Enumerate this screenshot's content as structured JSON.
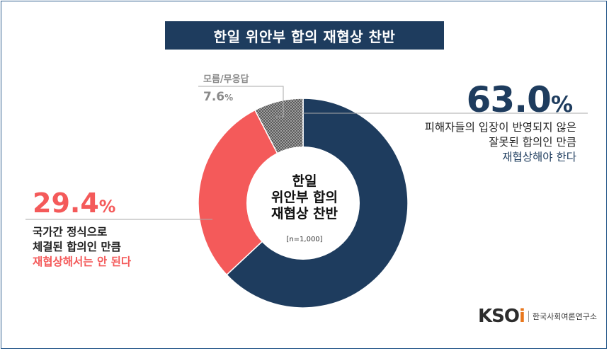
{
  "title": "한일 위안부 합의 재협상 찬반",
  "center": {
    "line1": "한일",
    "line2": "위안부 합의",
    "line3": "재협상 찬반",
    "n": "[n=1,000]"
  },
  "labels": {
    "right_pct": "63.0",
    "right_line1": "피해자들의 입장이 반영되지 않은",
    "right_line2": "잘못된 합의인 만큼",
    "right_line3": "재협상해야 한다",
    "left_pct": "29.4",
    "left_line1": "국가간 정식으로",
    "left_line2": "체결된 합의인 만큼",
    "left_line3": "재협상해서는 안 된다",
    "dk_label": "모름/무응답",
    "dk_pct": "7.6",
    "unit": "%"
  },
  "logo": {
    "mark_pre": "KSO",
    "mark_i": "i",
    "text": "한국사회여론연구소"
  },
  "colors": {
    "yes": "#1e3c5e",
    "no": "#f45a5a",
    "dk": "#9a9a9a"
  },
  "chart_data": {
    "type": "pie",
    "title": "한일 위안부 합의 재협상 찬반",
    "categories": [
      "피해자들의 입장이 반영되지 않은 잘못된 합의인 만큼 재협상해야 한다",
      "국가간 정식으로 체결된 합의인 만큼 재협상해서는 안 된다",
      "모름/무응답"
    ],
    "values": [
      63.0,
      29.4,
      7.6
    ],
    "sample": "[n=1,000]"
  }
}
